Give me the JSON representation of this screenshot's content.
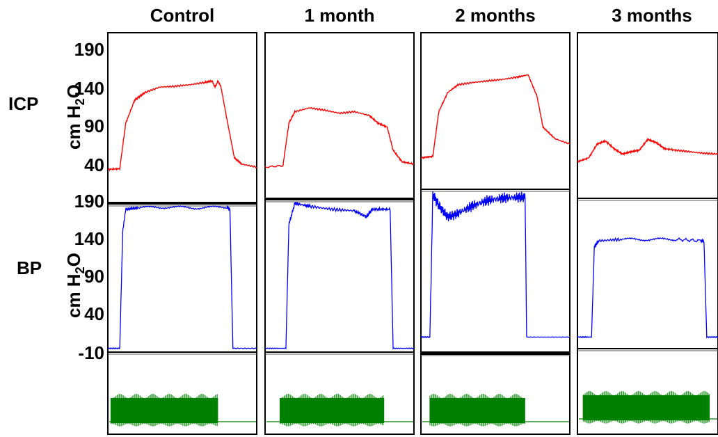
{
  "chart_data": {
    "type": "line",
    "columns": [
      "Control",
      "1 month",
      "2 months",
      "3 months"
    ],
    "rows": [
      {
        "label": "ICP",
        "unit": "cm H",
        "unit_sub": "2",
        "unit_end": "O",
        "color": "#ff0000",
        "y_ticks": [
          "190",
          "140",
          "90",
          "40"
        ]
      },
      {
        "label": "BP",
        "unit": "cm H",
        "unit_sub": "2",
        "unit_end": "O",
        "color": "#0000ff",
        "y_ticks": [
          "190",
          "140",
          "90",
          "40",
          "-10"
        ]
      },
      {
        "label": "",
        "color": "#008000"
      }
    ],
    "ylim_icp": [
      40,
      190
    ],
    "ylim_bp": [
      -10,
      190
    ],
    "series": {
      "ICP": [
        {
          "column": "Control",
          "x": [
            0,
            0.08,
            0.12,
            0.18,
            0.25,
            0.35,
            0.45,
            0.55,
            0.65,
            0.7,
            0.72,
            0.74,
            0.76,
            0.8,
            0.85,
            0.9,
            1.0
          ],
          "y": [
            35,
            36,
            95,
            125,
            135,
            142,
            143,
            145,
            148,
            150,
            142,
            150,
            142,
            100,
            50,
            42,
            38
          ]
        },
        {
          "column": "1 month",
          "x": [
            0,
            0.12,
            0.16,
            0.2,
            0.3,
            0.4,
            0.5,
            0.6,
            0.7,
            0.76,
            0.82,
            0.86,
            0.92,
            1.0
          ],
          "y": [
            38,
            40,
            95,
            110,
            115,
            112,
            108,
            110,
            105,
            95,
            90,
            60,
            45,
            42
          ]
        },
        {
          "column": "2 months",
          "x": [
            0,
            0.08,
            0.12,
            0.18,
            0.25,
            0.35,
            0.45,
            0.55,
            0.65,
            0.72,
            0.78,
            0.82,
            0.9,
            1.0
          ],
          "y": [
            50,
            52,
            110,
            135,
            145,
            148,
            150,
            152,
            155,
            158,
            130,
            90,
            75,
            68
          ]
        },
        {
          "column": "3 months",
          "x": [
            0,
            0.08,
            0.14,
            0.2,
            0.26,
            0.32,
            0.38,
            0.44,
            0.5,
            0.56,
            0.62,
            0.7,
            0.8,
            0.9,
            1.0
          ],
          "y": [
            45,
            50,
            68,
            72,
            62,
            55,
            58,
            60,
            74,
            70,
            62,
            60,
            58,
            56,
            55
          ]
        }
      ],
      "BP": [
        {
          "column": "Control",
          "x": [
            0,
            0.08,
            0.1,
            0.12,
            0.2,
            0.4,
            0.6,
            0.8,
            0.82,
            0.84,
            1.0
          ],
          "y": [
            -5,
            -5,
            150,
            180,
            182,
            183,
            182,
            183,
            180,
            -5,
            -5
          ]
        },
        {
          "column": "1 month",
          "x": [
            0,
            0.14,
            0.16,
            0.2,
            0.3,
            0.45,
            0.6,
            0.68,
            0.72,
            0.84,
            0.86,
            1.0
          ],
          "y": [
            -5,
            -5,
            160,
            188,
            184,
            180,
            178,
            170,
            180,
            180,
            -5,
            -5
          ]
        },
        {
          "column": "2 months",
          "x": [
            0,
            0.06,
            0.08,
            0.12,
            0.18,
            0.25,
            0.35,
            0.45,
            0.55,
            0.65,
            0.7,
            0.71,
            1.0
          ],
          "y": [
            10,
            10,
            200,
            185,
            170,
            175,
            185,
            192,
            195,
            196,
            196,
            10,
            10
          ]
        },
        {
          "column": "3 months",
          "x": [
            0,
            0.1,
            0.12,
            0.15,
            0.3,
            0.5,
            0.7,
            0.88,
            0.9,
            0.92,
            1.0
          ],
          "y": [
            10,
            10,
            130,
            138,
            140,
            140,
            140,
            138,
            138,
            10,
            10
          ]
        }
      ],
      "Stim": [
        {
          "column": "Control",
          "x_on": [
            0.02,
            0.74
          ]
        },
        {
          "column": "1 month",
          "x_on": [
            0.1,
            0.8
          ]
        },
        {
          "column": "2 months",
          "x_on": [
            0.06,
            0.7
          ]
        },
        {
          "column": "3 months",
          "x_on": [
            0.04,
            0.94
          ]
        }
      ]
    }
  }
}
